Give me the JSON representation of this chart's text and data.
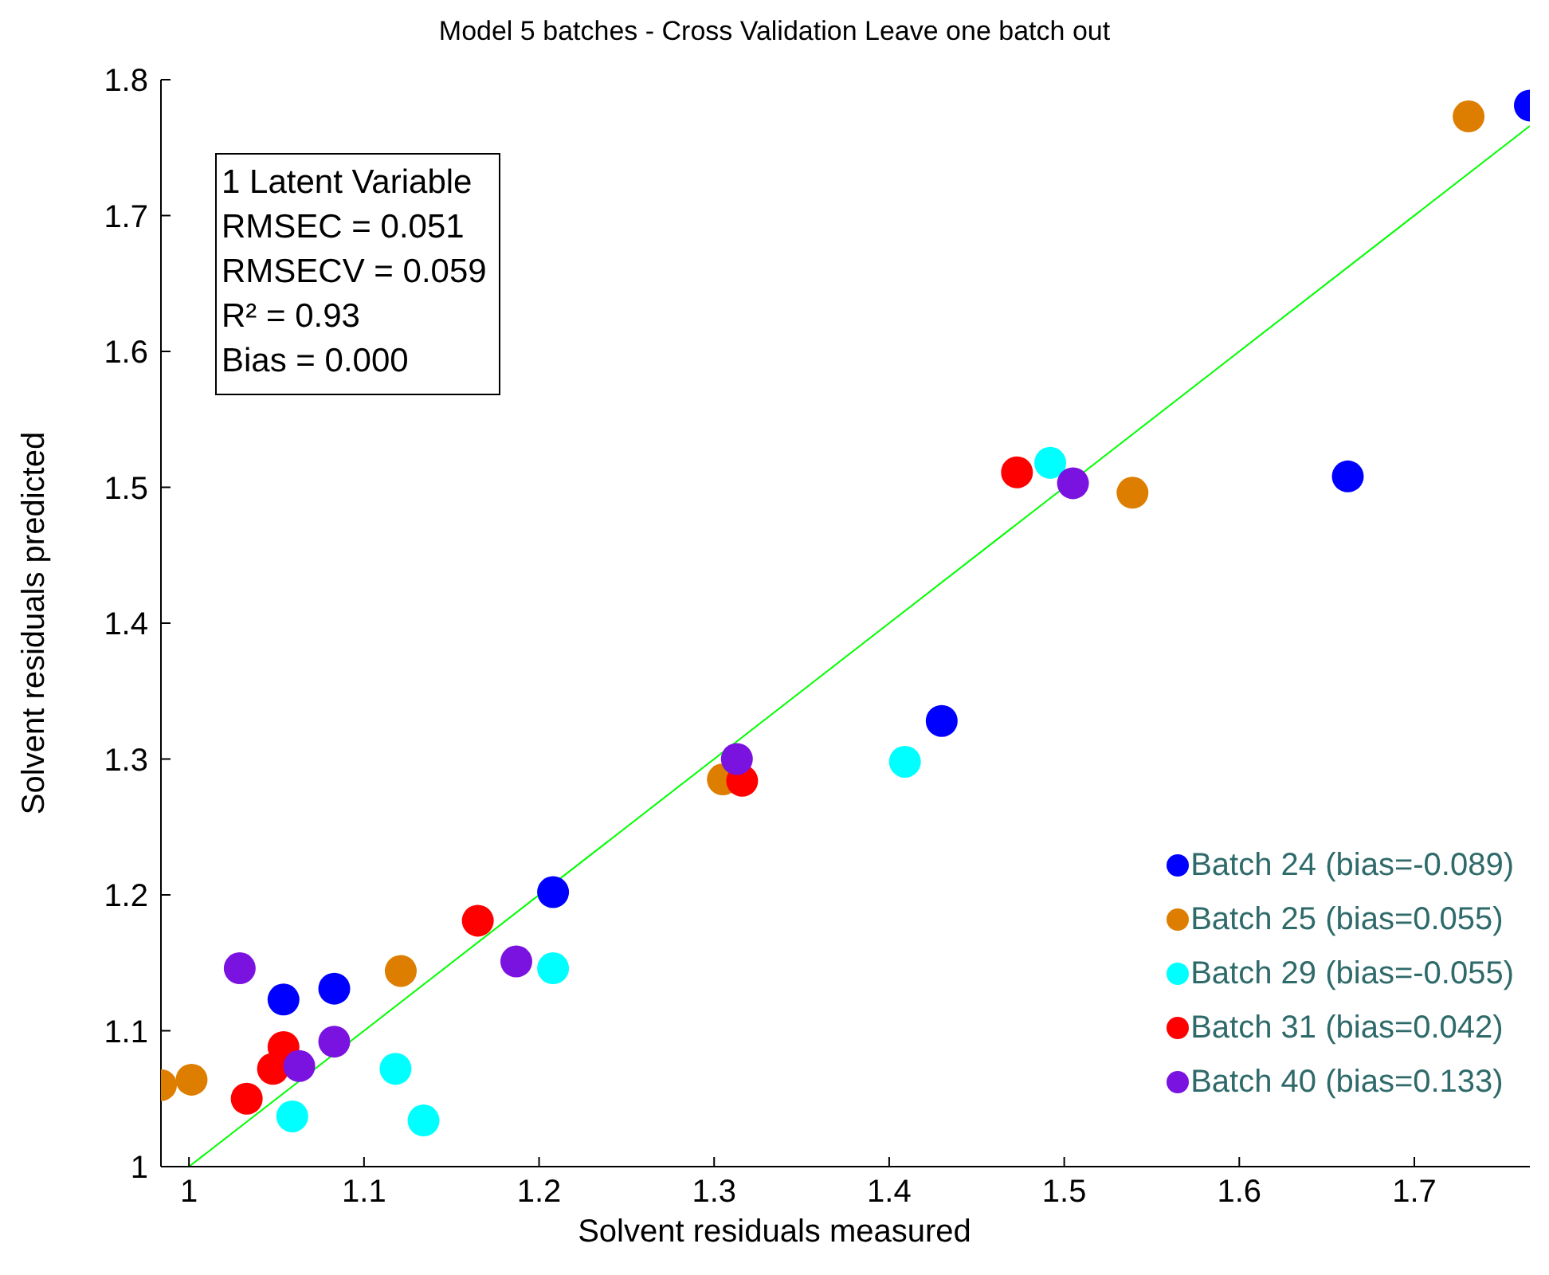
{
  "chart_data": {
    "type": "scatter",
    "title": "Model 5 batches - Cross Validation Leave one batch out",
    "xlabel": "Solvent residuals measured",
    "ylabel": "Solvent residuals predicted",
    "annotations": [
      "1 Latent Variable",
      "RMSEC = 0.051",
      "RMSECV = 0.059",
      "R² = 0.93",
      "Bias = 0.000"
    ],
    "series": [
      {
        "name": "Batch 24 (bias=-0.089)",
        "color": "#0000ff",
        "x": [
          1.054,
          1.083,
          1.208,
          1.43,
          1.662,
          1.766
        ],
        "values": [
          1.123,
          1.131,
          1.202,
          1.328,
          1.508,
          1.781
        ]
      },
      {
        "name": "Batch 25 (bias=0.055)",
        "color": "#dd7e00",
        "x": [
          0.984,
          1.0015,
          1.121,
          1.305,
          1.539,
          1.731
        ],
        "values": [
          1.06,
          1.064,
          1.144,
          1.285,
          1.496,
          1.773
        ]
      },
      {
        "name": "Batch 29 (bias=-0.055)",
        "color": "#00ffff",
        "x": [
          1.059,
          1.118,
          1.134,
          1.208,
          1.409,
          1.492
        ],
        "values": [
          1.037,
          1.072,
          1.034,
          1.146,
          1.298,
          1.518
        ]
      },
      {
        "name": "Batch 31 (bias=0.042)",
        "color": "#ff0000",
        "x": [
          1.033,
          1.048,
          1.054,
          1.165,
          1.316,
          1.473
        ],
        "values": [
          1.05,
          1.072,
          1.088,
          1.181,
          1.284,
          1.511
        ]
      },
      {
        "name": "Batch 40 (bias=0.133)",
        "color": "#7a12e0",
        "x": [
          1.029,
          1.063,
          1.083,
          1.187,
          1.313,
          1.505
        ],
        "values": [
          1.146,
          1.074,
          1.092,
          1.151,
          1.3,
          1.503
        ]
      },
      {
        "type": "line",
        "marker": "none",
        "color": "#00ff00",
        "x": [
          1,
          1.766
        ],
        "values": [
          1,
          1.766
        ]
      }
    ],
    "marker": "circle",
    "legend": "bottom right",
    "xlim": [
      0.984,
      1.766
    ],
    "xticks": [
      1,
      1.1,
      1.2,
      1.3,
      1.4,
      1.5,
      1.6,
      1.7
    ],
    "ylim": [
      1,
      1.8
    ],
    "yticks": [
      1,
      1.1,
      1.2,
      1.3,
      1.4,
      1.5,
      1.6,
      1.7,
      1.8
    ]
  }
}
